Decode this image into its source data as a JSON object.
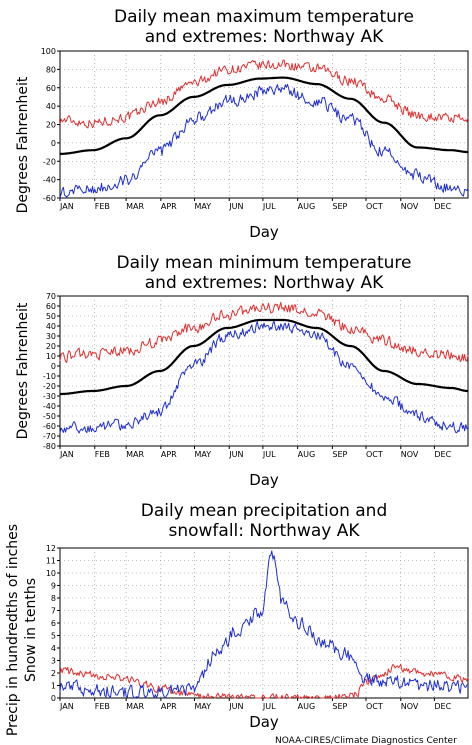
{
  "credit": "NOAA-CIRES/Climate Diagnostics Center",
  "chart_data": [
    {
      "type": "line",
      "title_lines": [
        "Daily mean maximum temperature",
        "and extremes: Northway AK"
      ],
      "xlabel": "Day",
      "ylabel_lines": [
        "Degrees Fahrenheit"
      ],
      "months": [
        "JAN",
        "FEB",
        "MAR",
        "APR",
        "MAY",
        "JUN",
        "JUL",
        "AUG",
        "SEP",
        "OCT",
        "NOV",
        "DEC"
      ],
      "xlim": [
        1,
        365
      ],
      "ylim": [
        -60,
        100
      ],
      "yticks": [
        -60,
        -40,
        -20,
        0,
        20,
        40,
        60,
        80,
        100
      ],
      "grid": true,
      "series": [
        {
          "color": "#e03030",
          "stroke": 1,
          "noise": 5,
          "x": [
            1,
            30,
            60,
            90,
            120,
            150,
            180,
            200,
            230,
            260,
            290,
            320,
            350,
            365
          ],
          "y": [
            25,
            22,
            28,
            45,
            65,
            80,
            84,
            85,
            80,
            68,
            48,
            30,
            27,
            24
          ]
        },
        {
          "color": "#000000",
          "stroke": 2.2,
          "noise": 0,
          "x": [
            1,
            30,
            60,
            90,
            120,
            150,
            180,
            200,
            230,
            260,
            290,
            320,
            350,
            365
          ],
          "y": [
            -12,
            -8,
            5,
            30,
            50,
            63,
            70,
            71,
            64,
            48,
            22,
            -5,
            -8,
            -10
          ]
        },
        {
          "color": "#2030d0",
          "stroke": 1,
          "noise": 6,
          "x": [
            1,
            30,
            60,
            90,
            120,
            150,
            180,
            200,
            230,
            260,
            290,
            320,
            350,
            365
          ],
          "y": [
            -55,
            -50,
            -40,
            -10,
            25,
            45,
            55,
            58,
            45,
            25,
            -10,
            -35,
            -48,
            -50
          ]
        }
      ]
    },
    {
      "type": "line",
      "title_lines": [
        "Daily mean minimum temperature",
        "and extremes: Northway AK"
      ],
      "xlabel": "Day",
      "ylabel_lines": [
        "Degrees Fahrenheit"
      ],
      "months": [
        "JAN",
        "FEB",
        "MAR",
        "APR",
        "MAY",
        "JUN",
        "JUL",
        "AUG",
        "SEP",
        "OCT",
        "NOV",
        "DEC"
      ],
      "xlim": [
        1,
        365
      ],
      "ylim": [
        -80,
        70
      ],
      "yticks": [
        -80,
        -70,
        -60,
        -50,
        -40,
        -30,
        -20,
        -10,
        0,
        10,
        20,
        30,
        40,
        50,
        60,
        70
      ],
      "grid": true,
      "series": [
        {
          "color": "#e03030",
          "stroke": 1,
          "noise": 5,
          "x": [
            1,
            30,
            60,
            90,
            120,
            150,
            180,
            200,
            230,
            260,
            290,
            320,
            350,
            365
          ],
          "y": [
            10,
            12,
            15,
            25,
            38,
            52,
            58,
            58,
            52,
            38,
            25,
            15,
            10,
            8
          ]
        },
        {
          "color": "#000000",
          "stroke": 2.2,
          "noise": 0,
          "x": [
            1,
            30,
            60,
            90,
            120,
            150,
            180,
            200,
            230,
            260,
            290,
            320,
            350,
            365
          ],
          "y": [
            -28,
            -25,
            -20,
            -5,
            20,
            38,
            46,
            46,
            38,
            20,
            -5,
            -18,
            -22,
            -25
          ]
        },
        {
          "color": "#2030d0",
          "stroke": 1,
          "noise": 5,
          "x": [
            1,
            30,
            60,
            90,
            120,
            150,
            180,
            200,
            230,
            260,
            290,
            320,
            350,
            365
          ],
          "y": [
            -62,
            -62,
            -58,
            -45,
            0,
            30,
            40,
            40,
            30,
            0,
            -30,
            -50,
            -60,
            -62
          ]
        }
      ]
    },
    {
      "type": "line",
      "title_lines": [
        "Daily mean precipitation and",
        "snowfall: Northway AK"
      ],
      "xlabel": "Day",
      "ylabel_lines": [
        "Precip in hundredths of inches",
        "Snow in tenths"
      ],
      "months": [
        "JAN",
        "FEB",
        "MAR",
        "APR",
        "MAY",
        "JUN",
        "JUL",
        "AUG",
        "SEP",
        "OCT",
        "NOV",
        "DEC"
      ],
      "xlim": [
        1,
        365
      ],
      "ylim": [
        0,
        12
      ],
      "yticks": [
        0,
        1,
        2,
        3,
        4,
        5,
        6,
        7,
        8,
        9,
        10,
        11,
        12
      ],
      "grid": true,
      "series": [
        {
          "color": "#e03030",
          "stroke": 1,
          "noise": 0.3,
          "x": [
            1,
            30,
            60,
            90,
            110,
            130,
            180,
            240,
            260,
            280,
            300,
            330,
            365
          ],
          "y": [
            2.2,
            1.8,
            1.5,
            0.8,
            0.3,
            0.1,
            0,
            0,
            0.1,
            1.5,
            2.4,
            2.0,
            1.5
          ]
        },
        {
          "color": "#2030d0",
          "stroke": 1,
          "noise": 0.5,
          "x": [
            1,
            30,
            60,
            90,
            120,
            140,
            160,
            180,
            190,
            200,
            215,
            235,
            255,
            275,
            300,
            330,
            365
          ],
          "y": [
            1.0,
            0.7,
            0.5,
            0.4,
            0.8,
            3.5,
            5.5,
            7.0,
            11.3,
            7.5,
            6.0,
            4.5,
            3.5,
            1.5,
            1.2,
            1.0,
            0.8
          ]
        }
      ]
    }
  ]
}
